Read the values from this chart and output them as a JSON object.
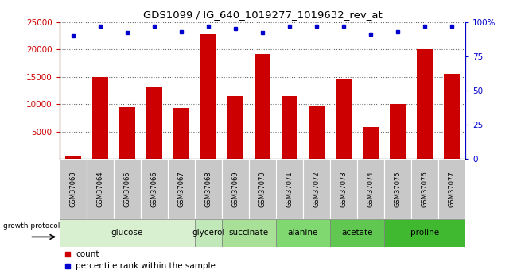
{
  "title": "GDS1099 / IG_640_1019277_1019632_rev_at",
  "samples": [
    "GSM37063",
    "GSM37064",
    "GSM37065",
    "GSM37066",
    "GSM37067",
    "GSM37068",
    "GSM37069",
    "GSM37070",
    "GSM37071",
    "GSM37072",
    "GSM37073",
    "GSM37074",
    "GSM37075",
    "GSM37076",
    "GSM37077"
  ],
  "counts": [
    500,
    15000,
    9500,
    13200,
    9300,
    22800,
    11400,
    19200,
    11500,
    9700,
    14700,
    5800,
    10000,
    20000,
    15500
  ],
  "percentiles": [
    90,
    97,
    92,
    97,
    93,
    97,
    95,
    92,
    97,
    97,
    97,
    91,
    93,
    97,
    97
  ],
  "groups": [
    {
      "label": "glucose",
      "start": 0,
      "end": 4,
      "color": "#d8f0d0"
    },
    {
      "label": "glycerol",
      "start": 5,
      "end": 5,
      "color": "#c0e8b8"
    },
    {
      "label": "succinate",
      "start": 6,
      "end": 7,
      "color": "#a8e098"
    },
    {
      "label": "alanine",
      "start": 8,
      "end": 9,
      "color": "#80d870"
    },
    {
      "label": "acetate",
      "start": 10,
      "end": 11,
      "color": "#60c850"
    },
    {
      "label": "proline",
      "start": 12,
      "end": 14,
      "color": "#40b830"
    }
  ],
  "ylim_left": [
    0,
    25000
  ],
  "ylim_right": [
    0,
    100
  ],
  "yticks_left": [
    5000,
    10000,
    15000,
    20000,
    25000
  ],
  "yticks_right": [
    0,
    25,
    50,
    75,
    100
  ],
  "bar_color": "#cc0000",
  "dot_color": "#0000cc",
  "left_tick_color": "#cc0000",
  "right_tick_color": "#0000cc",
  "bar_width": 0.6,
  "xtick_bg": "#c8c8c8",
  "group_border": "#808080"
}
